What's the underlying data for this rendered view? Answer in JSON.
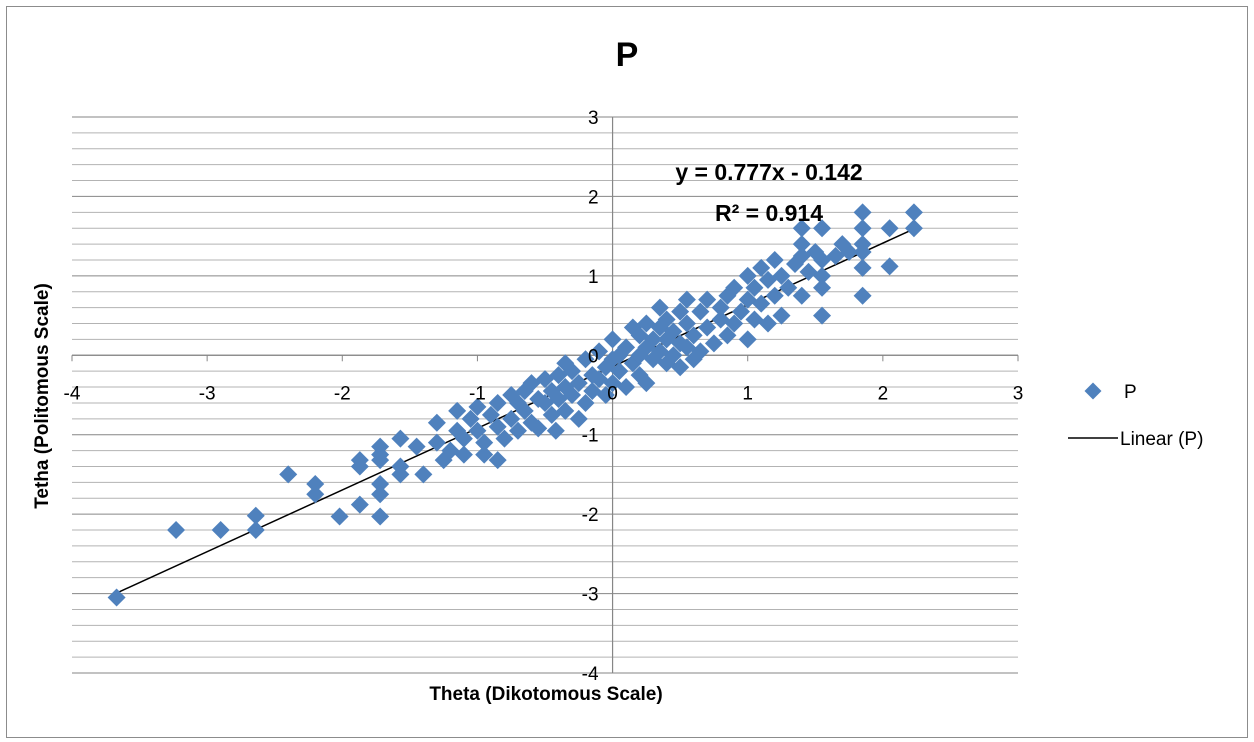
{
  "chart_data": {
    "type": "scatter",
    "title": "P",
    "xlabel": "Theta  (Dikotomous Scale)",
    "ylabel": "Tetha (Politomous  Scale)",
    "xlim": [
      -4,
      3
    ],
    "ylim": [
      -4,
      3
    ],
    "x_ticks": [
      "-4",
      "-3",
      "-2",
      "-1",
      "0",
      "1",
      "2",
      "3"
    ],
    "y_ticks": [
      "-4",
      "-3",
      "-2",
      "-1",
      "0",
      "1",
      "2",
      "3"
    ],
    "grid": "horizontal major and minor",
    "legend_position": "right",
    "marker_color": "#4F81BD",
    "series": [
      {
        "name": "P",
        "points": [
          [
            -3.67,
            -3.05
          ],
          [
            -3.23,
            -2.2
          ],
          [
            -2.9,
            -2.2
          ],
          [
            -2.64,
            -2.02
          ],
          [
            -2.64,
            -2.2
          ],
          [
            -2.4,
            -1.5
          ],
          [
            -2.2,
            -1.62
          ],
          [
            -2.2,
            -1.75
          ],
          [
            -2.02,
            -2.03
          ],
          [
            -1.87,
            -1.32
          ],
          [
            -1.87,
            -1.4
          ],
          [
            -1.87,
            -1.88
          ],
          [
            -1.72,
            -1.15
          ],
          [
            -1.72,
            -1.25
          ],
          [
            -1.72,
            -1.32
          ],
          [
            -1.72,
            -1.62
          ],
          [
            -1.72,
            -1.75
          ],
          [
            -1.72,
            -2.03
          ],
          [
            -1.57,
            -1.05
          ],
          [
            -1.57,
            -1.4
          ],
          [
            -1.57,
            -1.5
          ],
          [
            -1.45,
            -1.15
          ],
          [
            -1.4,
            -1.5
          ],
          [
            -1.3,
            -0.85
          ],
          [
            -1.3,
            -1.1
          ],
          [
            -1.25,
            -1.32
          ],
          [
            -1.2,
            -1.2
          ],
          [
            -1.15,
            -0.7
          ],
          [
            -1.15,
            -0.95
          ],
          [
            -1.1,
            -1.05
          ],
          [
            -1.1,
            -1.25
          ],
          [
            -1.05,
            -0.8
          ],
          [
            -1.0,
            -0.65
          ],
          [
            -1.0,
            -0.95
          ],
          [
            -0.95,
            -1.1
          ],
          [
            -0.95,
            -1.25
          ],
          [
            -0.9,
            -0.75
          ],
          [
            -0.85,
            -0.6
          ],
          [
            -0.85,
            -0.9
          ],
          [
            -0.85,
            -1.32
          ],
          [
            -0.8,
            -1.05
          ],
          [
            -0.75,
            -0.5
          ],
          [
            -0.75,
            -0.8
          ],
          [
            -0.7,
            -0.6
          ],
          [
            -0.7,
            -0.95
          ],
          [
            -0.65,
            -0.45
          ],
          [
            -0.65,
            -0.7
          ],
          [
            -0.6,
            -0.35
          ],
          [
            -0.6,
            -0.85
          ],
          [
            -0.55,
            -0.55
          ],
          [
            -0.55,
            -0.92
          ],
          [
            -0.5,
            -0.3
          ],
          [
            -0.5,
            -0.6
          ],
          [
            -0.45,
            -0.45
          ],
          [
            -0.45,
            -0.75
          ],
          [
            -0.42,
            -0.95
          ],
          [
            -0.4,
            -0.25
          ],
          [
            -0.4,
            -0.55
          ],
          [
            -0.35,
            -0.1
          ],
          [
            -0.35,
            -0.4
          ],
          [
            -0.35,
            -0.7
          ],
          [
            -0.3,
            -0.2
          ],
          [
            -0.3,
            -0.5
          ],
          [
            -0.25,
            -0.35
          ],
          [
            -0.25,
            -0.8
          ],
          [
            -0.2,
            -0.05
          ],
          [
            -0.2,
            -0.6
          ],
          [
            -0.15,
            -0.25
          ],
          [
            -0.15,
            -0.45
          ],
          [
            -0.1,
            0.05
          ],
          [
            -0.1,
            -0.3
          ],
          [
            -0.05,
            -0.15
          ],
          [
            -0.05,
            -0.5
          ],
          [
            0.0,
            0.2
          ],
          [
            0.0,
            -0.05
          ],
          [
            0.0,
            -0.35
          ],
          [
            0.05,
            0.0
          ],
          [
            0.05,
            -0.2
          ],
          [
            0.1,
            0.1
          ],
          [
            0.1,
            -0.4
          ],
          [
            0.15,
            0.35
          ],
          [
            0.15,
            -0.1
          ],
          [
            0.2,
            0.25
          ],
          [
            0.2,
            0.0
          ],
          [
            0.2,
            -0.25
          ],
          [
            0.25,
            0.4
          ],
          [
            0.25,
            0.1
          ],
          [
            0.25,
            -0.35
          ],
          [
            0.3,
            0.2
          ],
          [
            0.3,
            -0.05
          ],
          [
            0.35,
            0.6
          ],
          [
            0.35,
            0.35
          ],
          [
            0.35,
            0.05
          ],
          [
            0.4,
            0.45
          ],
          [
            0.4,
            0.2
          ],
          [
            0.4,
            -0.1
          ],
          [
            0.45,
            0.3
          ],
          [
            0.45,
            0.0
          ],
          [
            0.5,
            0.55
          ],
          [
            0.5,
            0.15
          ],
          [
            0.5,
            -0.15
          ],
          [
            0.55,
            0.7
          ],
          [
            0.55,
            0.4
          ],
          [
            0.55,
            0.1
          ],
          [
            0.6,
            0.25
          ],
          [
            0.6,
            -0.05
          ],
          [
            0.65,
            0.55
          ],
          [
            0.65,
            0.05
          ],
          [
            0.7,
            0.7
          ],
          [
            0.7,
            0.35
          ],
          [
            0.75,
            0.15
          ],
          [
            0.8,
            0.6
          ],
          [
            0.8,
            0.45
          ],
          [
            0.85,
            0.25
          ],
          [
            0.85,
            0.75
          ],
          [
            0.9,
            0.85
          ],
          [
            0.9,
            0.4
          ],
          [
            0.95,
            0.55
          ],
          [
            1.0,
            1.0
          ],
          [
            1.0,
            0.7
          ],
          [
            1.0,
            0.2
          ],
          [
            1.05,
            0.85
          ],
          [
            1.05,
            0.45
          ],
          [
            1.1,
            1.1
          ],
          [
            1.1,
            0.65
          ],
          [
            1.15,
            0.95
          ],
          [
            1.15,
            0.4
          ],
          [
            1.2,
            1.2
          ],
          [
            1.2,
            0.75
          ],
          [
            1.25,
            1.0
          ],
          [
            1.25,
            0.5
          ],
          [
            1.3,
            0.85
          ],
          [
            1.35,
            1.15
          ],
          [
            1.4,
            1.6
          ],
          [
            1.4,
            1.4
          ],
          [
            1.4,
            1.25
          ],
          [
            1.4,
            0.75
          ],
          [
            1.45,
            1.05
          ],
          [
            1.5,
            1.3
          ],
          [
            1.55,
            1.6
          ],
          [
            1.55,
            1.2
          ],
          [
            1.55,
            1.0
          ],
          [
            1.55,
            0.85
          ],
          [
            1.55,
            0.5
          ],
          [
            1.65,
            1.25
          ],
          [
            1.7,
            1.4
          ],
          [
            1.75,
            1.3
          ],
          [
            1.85,
            1.8
          ],
          [
            1.85,
            1.6
          ],
          [
            1.85,
            1.4
          ],
          [
            1.85,
            1.3
          ],
          [
            1.85,
            1.1
          ],
          [
            1.85,
            0.75
          ],
          [
            2.05,
            1.6
          ],
          [
            2.05,
            1.12
          ],
          [
            2.23,
            1.8
          ],
          [
            2.23,
            1.6
          ]
        ]
      }
    ],
    "trendline": {
      "name": "Linear (P)",
      "slope": 0.777,
      "intercept": -0.142,
      "x_range": [
        -3.67,
        2.23
      ],
      "equation_label": "y = 0.777x - 0.142",
      "r2_label": "R² = 0.914"
    }
  }
}
